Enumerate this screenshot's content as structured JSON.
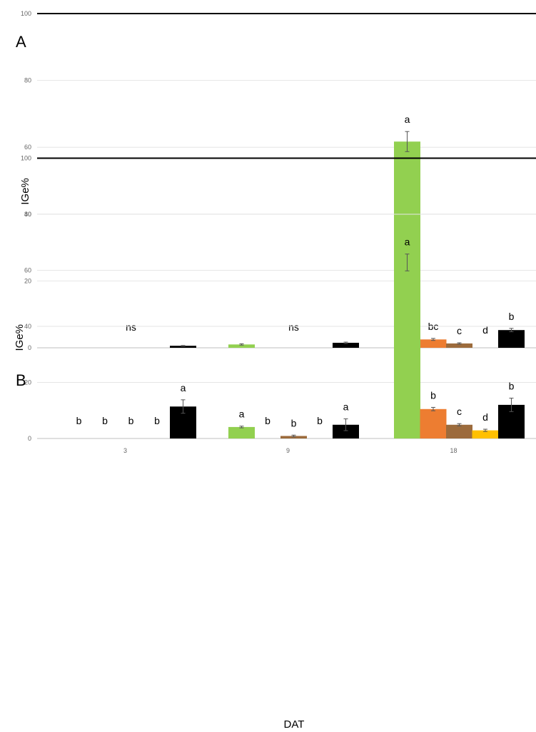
{
  "chart_data": [
    {
      "type": "bar",
      "panel_label": "A",
      "ylabel": "IGe%",
      "xlabel": "",
      "ylim": [
        0,
        100
      ],
      "yticks": [
        0,
        20,
        40,
        60,
        80,
        100
      ],
      "grid": true,
      "categories": [
        "3",
        "9",
        "18"
      ],
      "show_category_labels": false,
      "series_colors": [
        "#92d050",
        "#ed7d31",
        "#9c6b3c",
        "#ffc000",
        "#000000"
      ],
      "values": [
        [
          0,
          0,
          0,
          0,
          0.6
        ],
        [
          1.0,
          0,
          0,
          0,
          1.5
        ],
        [
          61.7,
          2.5,
          1.3,
          0,
          5.3
        ]
      ],
      "errors": [
        [
          0,
          0,
          0,
          0,
          0.1
        ],
        [
          0.2,
          0,
          0,
          0,
          0.2
        ],
        [
          3.0,
          0.3,
          0.2,
          0,
          0.5
        ]
      ],
      "group_labels": [
        "ns",
        "ns",
        ""
      ],
      "bar_labels": [
        [
          "",
          "",
          "",
          "",
          ""
        ],
        [
          "",
          "",
          "",
          "",
          ""
        ],
        [
          "a",
          "bc",
          "c",
          "d",
          "b"
        ]
      ]
    },
    {
      "type": "bar",
      "panel_label": "B",
      "ylabel": "IGe%",
      "xlabel": "DAT",
      "ylim": [
        0,
        100
      ],
      "yticks": [
        0,
        20,
        40,
        60,
        80,
        100
      ],
      "grid": true,
      "categories": [
        "3",
        "9",
        "18"
      ],
      "show_category_labels": true,
      "series_colors": [
        "#92d050",
        "#ed7d31",
        "#9c6b3c",
        "#ffc000",
        "#000000"
      ],
      "values": [
        [
          0,
          0,
          0,
          0,
          11.4
        ],
        [
          4.1,
          0,
          0.9,
          0,
          4.9
        ],
        [
          62.8,
          10.5,
          4.9,
          2.9,
          12.0
        ]
      ],
      "errors": [
        [
          0,
          0,
          0,
          0,
          2.4
        ],
        [
          0.3,
          0,
          0.3,
          0,
          2.1
        ],
        [
          3.0,
          0.6,
          0.4,
          0.4,
          2.4
        ]
      ],
      "group_labels": [
        "",
        "",
        ""
      ],
      "bar_labels": [
        [
          "b",
          "b",
          "b",
          "b",
          "a"
        ],
        [
          "a",
          "b",
          "b",
          "b",
          "a"
        ],
        [
          "a",
          "b",
          "c",
          "d",
          "b"
        ]
      ]
    }
  ]
}
